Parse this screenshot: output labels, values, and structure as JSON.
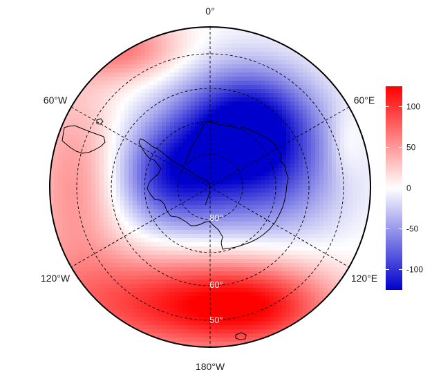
{
  "map": {
    "projection": "south-polar-stereographic",
    "longitude_labels": {
      "top": "0°",
      "upper_left": "60°W",
      "upper_right": "60°E",
      "lower_left": "120°W",
      "lower_right": "120°E",
      "bottom": "180°W"
    },
    "latitude_labels": [
      "80°",
      "60°",
      "50°"
    ],
    "graticule": {
      "latitudes": [
        80,
        70,
        60,
        50,
        40
      ],
      "longitudes": [
        0,
        60,
        120,
        180,
        240,
        300
      ],
      "style": "dashed"
    },
    "field": {
      "description_colors": "negative over East Antarctica, positive over Pacific sector",
      "min_color": "#0000cc",
      "mid_color": "#ffffff",
      "max_color": "#ff0000"
    }
  },
  "colorbar": {
    "ticks": [
      "100",
      "50",
      "0",
      "-50",
      "-100"
    ],
    "tick_values": [
      100,
      50,
      0,
      -50,
      -100
    ],
    "range": [
      -125,
      125
    ],
    "colors": [
      "#0000cc",
      "#ffffff",
      "#ff0000"
    ]
  }
}
